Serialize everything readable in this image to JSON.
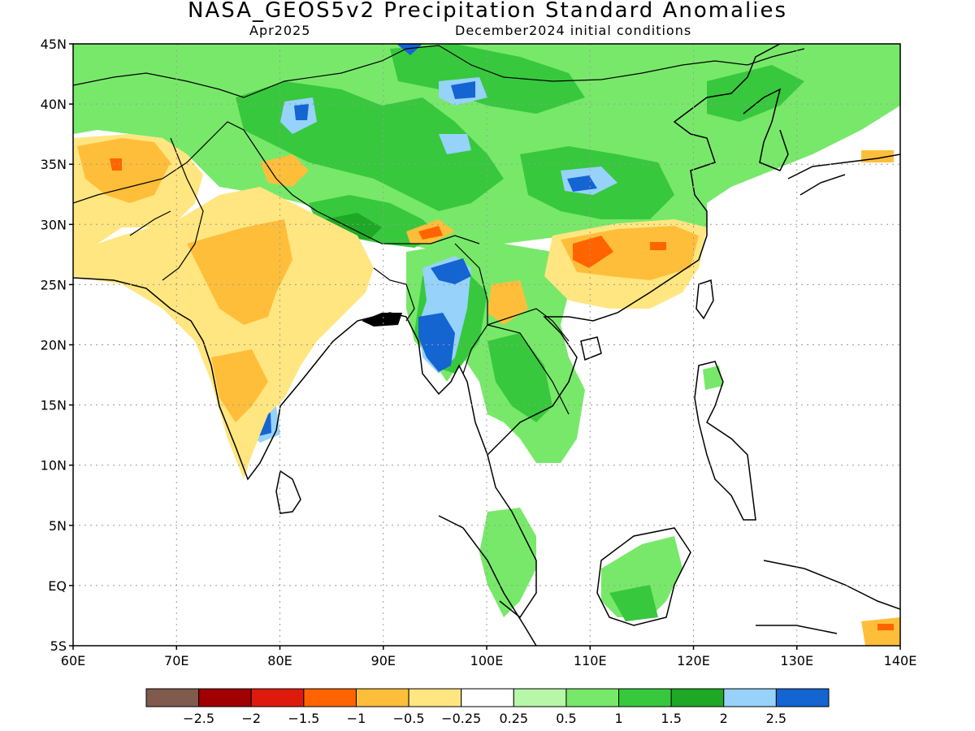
{
  "title": "NASA_GEOS5v2 Precipitation Standard Anomalies",
  "period": "Apr2025",
  "initial_conditions": "December2024 initial conditions",
  "lat_labels": [
    "45N",
    "40N",
    "35N",
    "30N",
    "25N",
    "20N",
    "15N",
    "10N",
    "5N",
    "EQ",
    "5S"
  ],
  "lon_labels": [
    "60E",
    "70E",
    "80E",
    "90E",
    "100E",
    "110E",
    "120E",
    "130E",
    "140E"
  ],
  "colorbar": {
    "colors": [
      "#7f5a4d",
      "#a00000",
      "#de1a0d",
      "#ff6400",
      "#ffbe3a",
      "#ffe680",
      "#ffffff",
      "#b7f7a8",
      "#78e86a",
      "#37c83d",
      "#1fa825",
      "#96d2fa",
      "#1464d2"
    ],
    "labels": [
      "−2.5",
      "−2",
      "−1.5",
      "−1",
      "−0.5",
      "−0.25",
      "0.25",
      "0.5",
      "1",
      "1.5",
      "2",
      "2.5"
    ]
  }
}
